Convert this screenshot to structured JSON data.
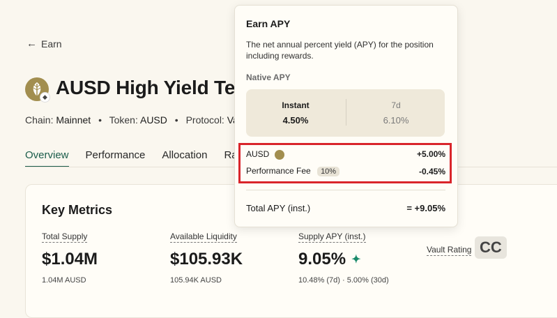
{
  "nav": {
    "back_label": "Earn",
    "back_icon": "arrow-left-icon"
  },
  "header": {
    "title": "AUSD High Yield Term",
    "chain_label": "Chain:",
    "chain_value": "Mainnet",
    "token_label": "Token:",
    "token_value": "AUSD",
    "protocol_label": "Protocol:",
    "protocol_value": "Vau"
  },
  "tabs": [
    {
      "label": "Overview",
      "active": true
    },
    {
      "label": "Performance"
    },
    {
      "label": "Allocation"
    },
    {
      "label": "Rati"
    }
  ],
  "key_metrics": {
    "title": "Key Metrics",
    "items": [
      {
        "label": "Total Supply",
        "value": "$1.04M",
        "sub": "1.04M AUSD"
      },
      {
        "label": "Available Liquidity",
        "value": "$105.93K",
        "sub": "105.94K AUSD"
      },
      {
        "label": "Supply APY (inst.)",
        "value": "9.05%",
        "sub": "10.48% (7d) · 5.00% (30d)"
      },
      {
        "label": "Vault Rating",
        "value": "CC"
      }
    ]
  },
  "popover": {
    "title": "Earn APY",
    "description": "The net annual percent yield (APY) for the position including rewards.",
    "native_label": "Native APY",
    "native": [
      {
        "label": "Instant",
        "value": "4.50%"
      },
      {
        "label": "7d",
        "value": "6.10%"
      }
    ],
    "rows": [
      {
        "label": "AUSD",
        "value": "+5.00%"
      },
      {
        "label": "Performance Fee",
        "badge": "10%",
        "value": "-0.45%"
      }
    ],
    "total_label": "Total APY (inst.)",
    "total_value": "= +9.05%"
  },
  "colors": {
    "accent": "#1a5c4a",
    "highlight": "#d9252b",
    "token": "#a28e4f"
  }
}
